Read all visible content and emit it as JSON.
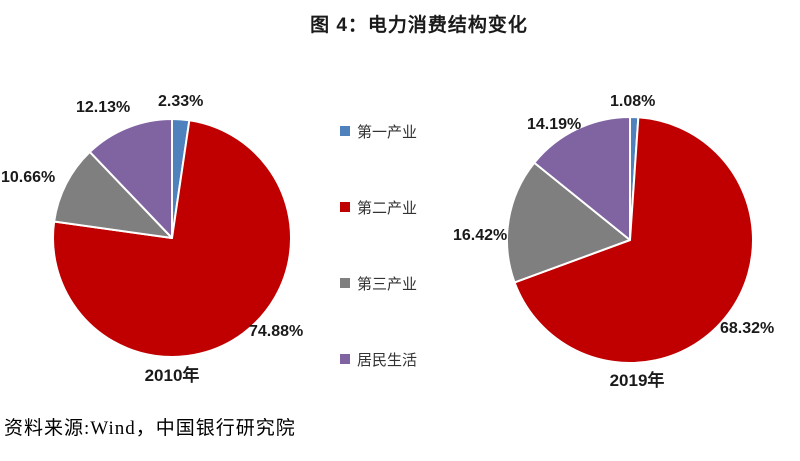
{
  "title": "图 4：电力消费结构变化",
  "source": "资料来源:Wind，中国银行研究院",
  "colors": {
    "primary_industry": "#4F81BD",
    "secondary_industry": "#C00000",
    "tertiary_industry": "#7F7F7F",
    "residential": "#8064A2",
    "label_text": "#1a1a1a",
    "background": "#ffffff"
  },
  "legend": {
    "position": "center-between-pies",
    "items": [
      {
        "label": "第一产业",
        "color": "#4F81BD"
      },
      {
        "label": "第二产业",
        "color": "#C00000"
      },
      {
        "label": "第三产业",
        "color": "#7F7F7F"
      },
      {
        "label": "居民生活",
        "color": "#8064A2"
      }
    ]
  },
  "chart_data": [
    {
      "type": "pie",
      "title": "2010年",
      "categories": [
        "第一产业",
        "第二产业",
        "第三产业",
        "居民生活"
      ],
      "values": [
        2.33,
        74.88,
        10.66,
        12.13
      ],
      "labels": [
        "2.33%",
        "74.88%",
        "10.66%",
        "12.13%"
      ],
      "colors": [
        "#4F81BD",
        "#C00000",
        "#7F7F7F",
        "#8064A2"
      ],
      "start_angle_deg": 0,
      "direction": "clockwise"
    },
    {
      "type": "pie",
      "title": "2019年",
      "categories": [
        "第一产业",
        "第二产业",
        "第三产业",
        "居民生活"
      ],
      "values": [
        1.08,
        68.32,
        16.42,
        14.19
      ],
      "labels": [
        "1.08%",
        "68.32%",
        "16.42%",
        "14.19%"
      ],
      "colors": [
        "#4F81BD",
        "#C00000",
        "#7F7F7F",
        "#8064A2"
      ],
      "start_angle_deg": 0,
      "direction": "clockwise"
    }
  ]
}
